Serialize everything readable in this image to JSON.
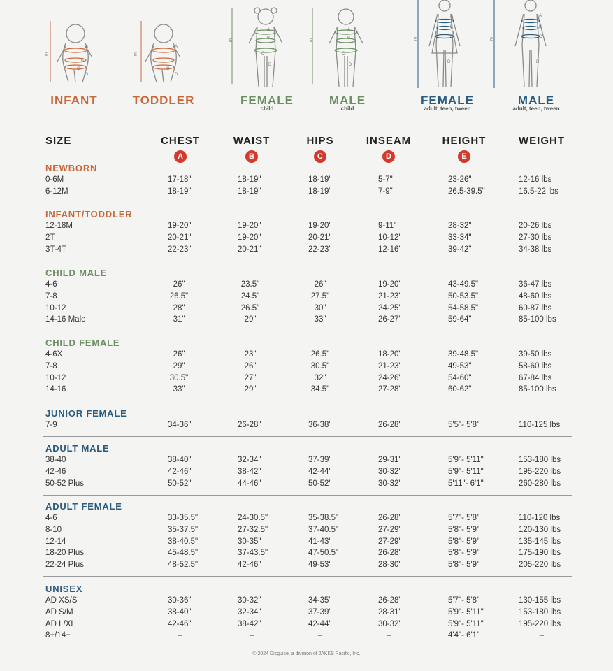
{
  "colors": {
    "orange": "#c8683a",
    "green": "#6b8f63",
    "blue": "#2a5b80",
    "badge": "#d43a2b"
  },
  "figures": [
    {
      "label": "INFANT",
      "sublabel": "",
      "color": "#c8683a",
      "icon": "infant-figure-icon"
    },
    {
      "label": "TODDLER",
      "sublabel": "",
      "color": "#c8683a",
      "icon": "toddler-figure-icon"
    },
    {
      "label": "FEMALE",
      "sublabel": "child",
      "color": "#6b8f63",
      "icon": "child-female-figure-icon"
    },
    {
      "label": "MALE",
      "sublabel": "child",
      "color": "#6b8f63",
      "icon": "child-male-figure-icon"
    },
    {
      "label": "FEMALE",
      "sublabel": "adult, teen, tween",
      "color": "#2a5b80",
      "icon": "adult-female-figure-icon"
    },
    {
      "label": "MALE",
      "sublabel": "adult, teen, tween",
      "color": "#2a5b80",
      "icon": "adult-male-figure-icon"
    }
  ],
  "figure_marks": [
    "A",
    "B",
    "C",
    "D",
    "E"
  ],
  "headers": [
    {
      "label": "SIZE",
      "badge": ""
    },
    {
      "label": "CHEST",
      "badge": "A"
    },
    {
      "label": "WAIST",
      "badge": "B"
    },
    {
      "label": "HIPS",
      "badge": "C"
    },
    {
      "label": "INSEAM",
      "badge": "D"
    },
    {
      "label": "HEIGHT",
      "badge": "E"
    },
    {
      "label": "WEIGHT",
      "badge": ""
    }
  ],
  "sections": [
    {
      "title": "NEWBORN",
      "color": "#c8683a",
      "rows": [
        [
          "0-6M",
          "17-18\"",
          "18-19\"",
          "18-19\"",
          "5-7\"",
          "23-26\"",
          "12-16 lbs"
        ],
        [
          "6-12M",
          "18-19\"",
          "18-19\"",
          "18-19\"",
          "7-9\"",
          "26.5-39.5\"",
          "16.5-22 lbs"
        ]
      ]
    },
    {
      "title": "INFANT/TODDLER",
      "color": "#c8683a",
      "rows": [
        [
          "12-18M",
          "19-20\"",
          "19-20\"",
          "19-20\"",
          "9-11\"",
          "28-32\"",
          "20-26 lbs"
        ],
        [
          "2T",
          "20-21\"",
          "19-20\"",
          "20-21\"",
          "10-12\"",
          "33-34\"",
          "27-30 lbs"
        ],
        [
          "3T-4T",
          "22-23\"",
          "20-21\"",
          "22-23\"",
          "12-16\"",
          "39-42\"",
          "34-38 lbs"
        ]
      ]
    },
    {
      "title": "CHILD MALE",
      "color": "#6b8f63",
      "rows": [
        [
          "4-6",
          "26\"",
          "23.5\"",
          "26\"",
          "19-20\"",
          "43-49.5\"",
          "36-47 lbs"
        ],
        [
          "7-8",
          "26.5\"",
          "24.5\"",
          "27.5\"",
          "21-23\"",
          "50-53.5\"",
          "48-60 lbs"
        ],
        [
          "10-12",
          "28\"",
          "26.5\"",
          "30\"",
          "24-25\"",
          "54-58.5\"",
          "60-87 lbs"
        ],
        [
          "14-16 Male",
          "31\"",
          "29\"",
          "33\"",
          "26-27\"",
          "59-64\"",
          "85-100 lbs"
        ]
      ]
    },
    {
      "title": "CHILD FEMALE",
      "color": "#6b8f63",
      "rows": [
        [
          "4-6X",
          "26\"",
          "23\"",
          "26.5\"",
          "18-20\"",
          "39-48.5\"",
          "39-50 lbs"
        ],
        [
          "7-8",
          "29\"",
          "26\"",
          "30.5\"",
          "21-23\"",
          "49-53\"",
          "58-60 lbs"
        ],
        [
          "10-12",
          "30.5\"",
          "27\"",
          "32\"",
          "24-26\"",
          "54-60\"",
          "67-84 lbs"
        ],
        [
          "14-16",
          "33\"",
          "29\"",
          "34.5\"",
          "27-28\"",
          "60-62\"",
          "85-100 lbs"
        ]
      ]
    },
    {
      "title": "JUNIOR FEMALE",
      "color": "#2a5b80",
      "rows": [
        [
          "7-9",
          "34-36\"",
          "26-28\"",
          "36-38\"",
          "26-28\"",
          "5'5\"- 5'8\"",
          "110-125 lbs"
        ]
      ]
    },
    {
      "title": "ADULT MALE",
      "color": "#2a5b80",
      "rows": [
        [
          "38-40",
          "38-40\"",
          "32-34\"",
          "37-39\"",
          "29-31\"",
          "5'9\"- 5'11\"",
          "153-180 lbs"
        ],
        [
          "42-46",
          "42-46\"",
          "38-42\"",
          "42-44\"",
          "30-32\"",
          "5'9\"- 5'11\"",
          "195-220 lbs"
        ],
        [
          "50-52 Plus",
          "50-52\"",
          "44-46\"",
          "50-52\"",
          "30-32\"",
          "5'11\"- 6'1\"",
          "260-280 lbs"
        ]
      ]
    },
    {
      "title": "ADULT FEMALE",
      "color": "#2a5b80",
      "rows": [
        [
          "4-6",
          "33-35.5\"",
          "24-30.5\"",
          "35-38.5\"",
          "26-28\"",
          "5'7\"- 5'8\"",
          "110-120 lbs"
        ],
        [
          "8-10",
          "35-37.5\"",
          "27-32.5\"",
          "37-40.5\"",
          "27-29\"",
          "5'8\"- 5'9\"",
          "120-130 lbs"
        ],
        [
          "12-14",
          "38-40.5\"",
          "30-35\"",
          "41-43\"",
          "27-29\"",
          "5'8\"- 5'9\"",
          "135-145 lbs"
        ],
        [
          "18-20 Plus",
          "45-48.5\"",
          "37-43.5\"",
          "47-50.5\"",
          "26-28\"",
          "5'8\"- 5'9\"",
          "175-190 lbs"
        ],
        [
          "22-24 Plus",
          "48-52.5\"",
          "42-46\"",
          "49-53\"",
          "28-30\"",
          "5'8\"- 5'9\"",
          "205-220 lbs"
        ]
      ]
    },
    {
      "title": "UNISEX",
      "color": "#2a5b80",
      "rows": [
        [
          "AD XS/S",
          "30-36\"",
          "30-32\"",
          "34-35\"",
          "26-28\"",
          "5'7\"- 5'8\"",
          "130-155 lbs"
        ],
        [
          "AD S/M",
          "38-40\"",
          "32-34\"",
          "37-39\"",
          "28-31\"",
          "5'9\"- 5'11\"",
          "153-180 lbs"
        ],
        [
          "AD L/XL",
          "42-46\"",
          "38-42\"",
          "42-44\"",
          "30-32\"",
          "5'9\"- 5'11\"",
          "195-220 lbs"
        ],
        [
          "8+/14+",
          "–",
          "–",
          "–",
          "–",
          "4'4\"- 6'1\"",
          "–"
        ]
      ]
    }
  ],
  "footer": "© 2024 Disguise, a division of JAKKS Pacific, Inc."
}
